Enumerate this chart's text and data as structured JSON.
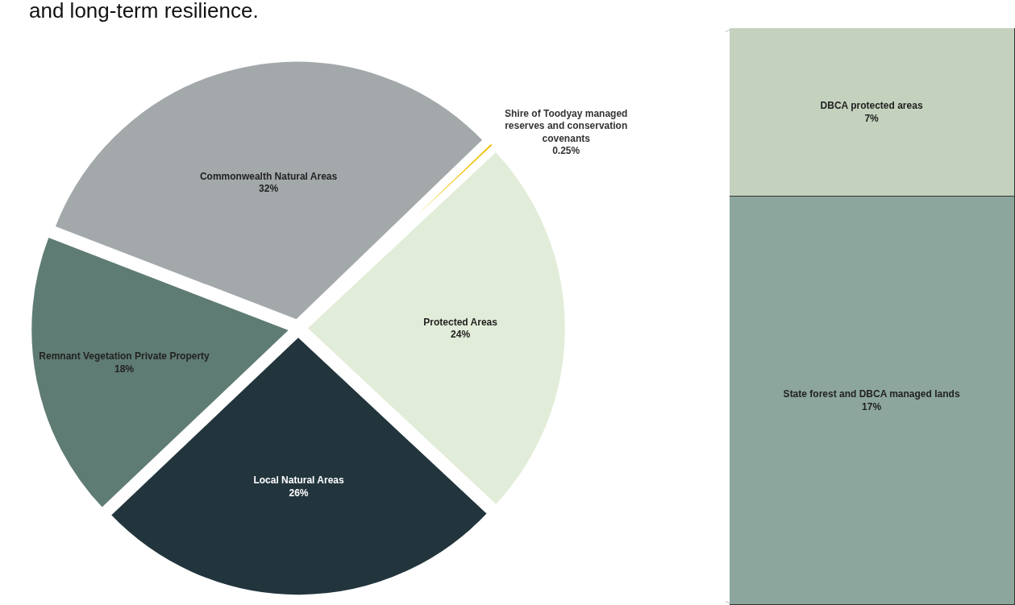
{
  "chart_data": [
    {
      "type": "pie",
      "title": "and long-term resilience.",
      "categories": [
        "Shire of Toodyay managed reserves and conservation covenants",
        "Protected Areas",
        "Local Natural Areas",
        "Remnant Vegetation Private Property",
        "Commonwealth Natural Areas"
      ],
      "values": [
        0.25,
        24,
        26,
        18,
        32
      ],
      "value_labels": [
        "0.25%",
        "24%",
        "26%",
        "18%",
        "32%"
      ],
      "colors": [
        "#f0c000",
        "#e2edd9",
        "#22353d",
        "#5f7c74",
        "#a3a8ab"
      ],
      "legend": false
    },
    {
      "type": "bar",
      "stacked": true,
      "categories": [
        null
      ],
      "series": [
        {
          "name": "State forest and DBCA managed lands",
          "color": "#8ca69e",
          "values": [
            17
          ],
          "value_labels": [
            "17%"
          ]
        },
        {
          "name": "DBCA protected areas",
          "color": "#c3d1bd",
          "values": [
            7
          ],
          "value_labels": [
            "7%"
          ]
        }
      ],
      "ylim": [
        0,
        24
      ],
      "tick_labels": false,
      "legend": false
    }
  ]
}
